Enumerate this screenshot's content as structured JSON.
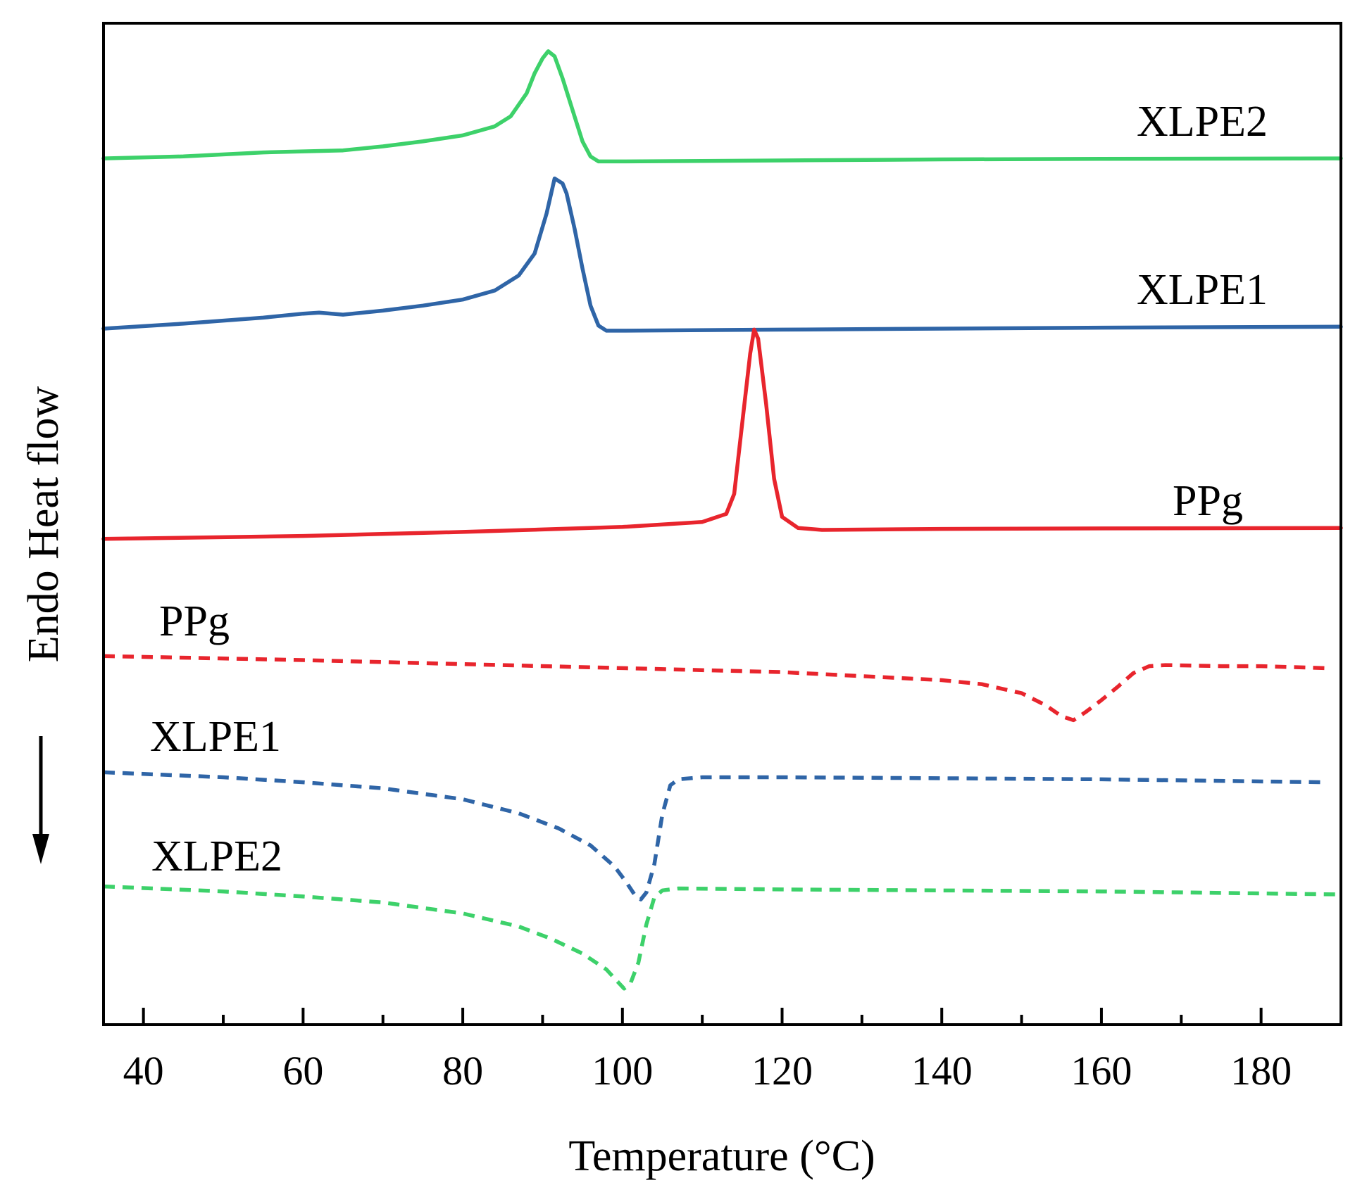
{
  "chart_data": {
    "type": "line",
    "title": "",
    "xlabel": "Temperature (°C)",
    "ylabel": "Endo Heat flow",
    "xlim": [
      35,
      190
    ],
    "ylim": [
      0,
      100
    ],
    "x_ticks": [
      40,
      60,
      80,
      100,
      120,
      140,
      160,
      180
    ],
    "minor_tick_step": 10,
    "grid": false,
    "legend": "none (inline curve labels)",
    "endo_direction": "down",
    "series": [
      {
        "name": "XLPE2",
        "style": "solid",
        "color": "#3dd16a",
        "label": "XLPE2",
        "points": [
          [
            35,
            13.5
          ],
          [
            45,
            13.3
          ],
          [
            55,
            12.9
          ],
          [
            60,
            12.8
          ],
          [
            65,
            12.7
          ],
          [
            70,
            12.3
          ],
          [
            75,
            11.8
          ],
          [
            80,
            11.2
          ],
          [
            84,
            10.3
          ],
          [
            86,
            9.3
          ],
          [
            88,
            7.0
          ],
          [
            89,
            5.0
          ],
          [
            90,
            3.5
          ],
          [
            90.7,
            2.8
          ],
          [
            91.5,
            3.3
          ],
          [
            92.5,
            5.5
          ],
          [
            94,
            9.3
          ],
          [
            95,
            11.8
          ],
          [
            96,
            13.3
          ],
          [
            97,
            13.8
          ],
          [
            100,
            13.8
          ],
          [
            120,
            13.7
          ],
          [
            140,
            13.6
          ],
          [
            160,
            13.55
          ],
          [
            190,
            13.5
          ]
        ]
      },
      {
        "name": "XLPE1",
        "style": "solid",
        "color": "#2f65a7",
        "label": "XLPE1",
        "points": [
          [
            35,
            30.5
          ],
          [
            45,
            30.0
          ],
          [
            55,
            29.4
          ],
          [
            60,
            29.0
          ],
          [
            62,
            28.9
          ],
          [
            65,
            29.1
          ],
          [
            70,
            28.7
          ],
          [
            75,
            28.2
          ],
          [
            80,
            27.6
          ],
          [
            84,
            26.7
          ],
          [
            87,
            25.2
          ],
          [
            89,
            23.0
          ],
          [
            90.5,
            19.0
          ],
          [
            91.5,
            15.5
          ],
          [
            92.5,
            16.0
          ],
          [
            93,
            17.0
          ],
          [
            94,
            20.5
          ],
          [
            95,
            24.5
          ],
          [
            96,
            28.2
          ],
          [
            97,
            30.2
          ],
          [
            98,
            30.7
          ],
          [
            100,
            30.7
          ],
          [
            120,
            30.6
          ],
          [
            140,
            30.5
          ],
          [
            160,
            30.4
          ],
          [
            190,
            30.3
          ]
        ]
      },
      {
        "name": "PPg",
        "style": "solid",
        "color": "#e8252d",
        "label": "PPg",
        "points": [
          [
            35,
            51.5
          ],
          [
            60,
            51.2
          ],
          [
            80,
            50.8
          ],
          [
            100,
            50.3
          ],
          [
            110,
            49.8
          ],
          [
            113,
            49.0
          ],
          [
            114,
            47.0
          ],
          [
            115,
            40.0
          ],
          [
            116,
            33.0
          ],
          [
            116.5,
            30.6
          ],
          [
            117,
            31.5
          ],
          [
            118,
            38.0
          ],
          [
            119,
            45.5
          ],
          [
            120,
            49.3
          ],
          [
            122,
            50.4
          ],
          [
            125,
            50.6
          ],
          [
            140,
            50.5
          ],
          [
            160,
            50.45
          ],
          [
            190,
            50.4
          ]
        ]
      },
      {
        "name": "PPg",
        "style": "dashed",
        "color": "#e8252d",
        "label": "PPg",
        "points": [
          [
            35,
            63.2
          ],
          [
            60,
            63.6
          ],
          [
            80,
            64.0
          ],
          [
            100,
            64.4
          ],
          [
            120,
            64.8
          ],
          [
            140,
            65.6
          ],
          [
            145,
            66.0
          ],
          [
            150,
            66.9
          ],
          [
            153,
            68.1
          ],
          [
            155,
            69.2
          ],
          [
            156.5,
            69.6
          ],
          [
            158,
            68.8
          ],
          [
            160,
            67.6
          ],
          [
            162,
            66.3
          ],
          [
            164,
            64.9
          ],
          [
            166,
            64.2
          ],
          [
            168,
            64.1
          ],
          [
            175,
            64.2
          ],
          [
            180,
            64.2
          ],
          [
            188,
            64.4
          ]
        ]
      },
      {
        "name": "XLPE1",
        "style": "dashed",
        "color": "#2f65a7",
        "label": "XLPE1",
        "points": [
          [
            35,
            74.8
          ],
          [
            50,
            75.3
          ],
          [
            60,
            75.8
          ],
          [
            70,
            76.4
          ],
          [
            80,
            77.5
          ],
          [
            87,
            78.9
          ],
          [
            92,
            80.4
          ],
          [
            96,
            82.1
          ],
          [
            99,
            84.2
          ],
          [
            100.5,
            85.8
          ],
          [
            101.5,
            87.0
          ],
          [
            102.3,
            87.5
          ],
          [
            103,
            86.8
          ],
          [
            104,
            84.0
          ],
          [
            105,
            79.0
          ],
          [
            106,
            76.1
          ],
          [
            107,
            75.5
          ],
          [
            110,
            75.3
          ],
          [
            120,
            75.3
          ],
          [
            140,
            75.4
          ],
          [
            160,
            75.5
          ],
          [
            188,
            75.8
          ]
        ]
      },
      {
        "name": "XLPE2",
        "style": "dashed",
        "color": "#3dd16a",
        "label": "XLPE2",
        "points": [
          [
            35,
            86.2
          ],
          [
            50,
            86.7
          ],
          [
            60,
            87.2
          ],
          [
            70,
            87.8
          ],
          [
            80,
            88.9
          ],
          [
            87,
            90.2
          ],
          [
            91,
            91.4
          ],
          [
            95,
            92.9
          ],
          [
            98,
            94.5
          ],
          [
            99.5,
            95.8
          ],
          [
            100.2,
            96.4
          ],
          [
            101,
            95.9
          ],
          [
            102,
            93.8
          ],
          [
            103,
            90.0
          ],
          [
            104,
            87.3
          ],
          [
            105,
            86.6
          ],
          [
            107,
            86.4
          ],
          [
            120,
            86.5
          ],
          [
            140,
            86.6
          ],
          [
            160,
            86.7
          ],
          [
            190,
            87.0
          ]
        ]
      }
    ],
    "curve_labels": [
      {
        "series_index": 0,
        "text": "XLPE2"
      },
      {
        "series_index": 1,
        "text": "XLPE1"
      },
      {
        "series_index": 2,
        "text": "PPg"
      },
      {
        "series_index": 3,
        "text": "PPg"
      },
      {
        "series_index": 4,
        "text": "XLPE1"
      },
      {
        "series_index": 5,
        "text": "XLPE2"
      }
    ]
  }
}
